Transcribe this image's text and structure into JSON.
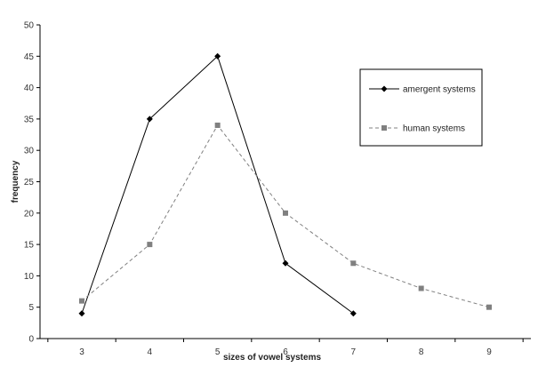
{
  "chart_data": {
    "type": "line",
    "title": "",
    "xlabel": "sizes of vowel systems",
    "ylabel": "frequency",
    "x_ticks": [
      "3",
      "4",
      "5",
      "6",
      "7",
      "8",
      "9"
    ],
    "y_ticks": [
      "0",
      "5",
      "10",
      "15",
      "20",
      "25",
      "30",
      "35",
      "40",
      "45",
      "50"
    ],
    "xlim": [
      3,
      9
    ],
    "ylim": [
      0,
      50
    ],
    "grid": false,
    "legend_position": "top-right",
    "series": [
      {
        "name": "amergent systems",
        "x": [
          3,
          4,
          5,
          6,
          7
        ],
        "values": [
          4,
          35,
          45,
          12,
          4
        ],
        "color": "#000000",
        "line_style": "solid",
        "marker": "diamond"
      },
      {
        "name": "human systems",
        "x": [
          3,
          4,
          5,
          6,
          7,
          8,
          9
        ],
        "values": [
          6,
          15,
          34,
          20,
          12,
          8,
          5
        ],
        "color": "#808080",
        "line_style": "dashed",
        "marker": "square"
      }
    ]
  }
}
